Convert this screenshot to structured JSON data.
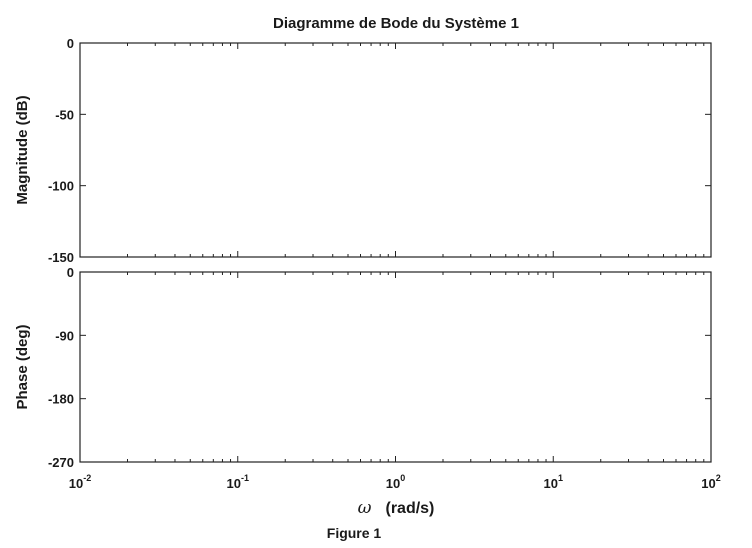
{
  "chart_data": {
    "type": "line",
    "title": "Diagramme de Bode du Système 1",
    "caption": "Figure 1",
    "xlabel_symbol": "ω",
    "xlabel_unit": "(rad/s)",
    "xscale": "log",
    "xlim": [
      0.01,
      100
    ],
    "x_ticks": [
      {
        "base": "10",
        "exp": "-2"
      },
      {
        "base": "10",
        "exp": "-1"
      },
      {
        "base": "10",
        "exp": "0"
      },
      {
        "base": "10",
        "exp": "1"
      },
      {
        "base": "10",
        "exp": "2"
      }
    ],
    "grid": true,
    "subplots": [
      {
        "ylabel": "Magnitude (dB)",
        "ylim": [
          -150,
          0
        ],
        "y_ticks": [
          "0",
          "-50",
          "-100",
          "-150"
        ],
        "y_tick_values": [
          0,
          -50,
          -100,
          -150
        ],
        "series": []
      },
      {
        "ylabel": "Phase (deg)",
        "ylim": [
          -270,
          0
        ],
        "y_ticks": [
          "0",
          "-90",
          "-180",
          "-270"
        ],
        "y_tick_values": [
          0,
          -90,
          -180,
          -270
        ],
        "series": []
      }
    ]
  }
}
